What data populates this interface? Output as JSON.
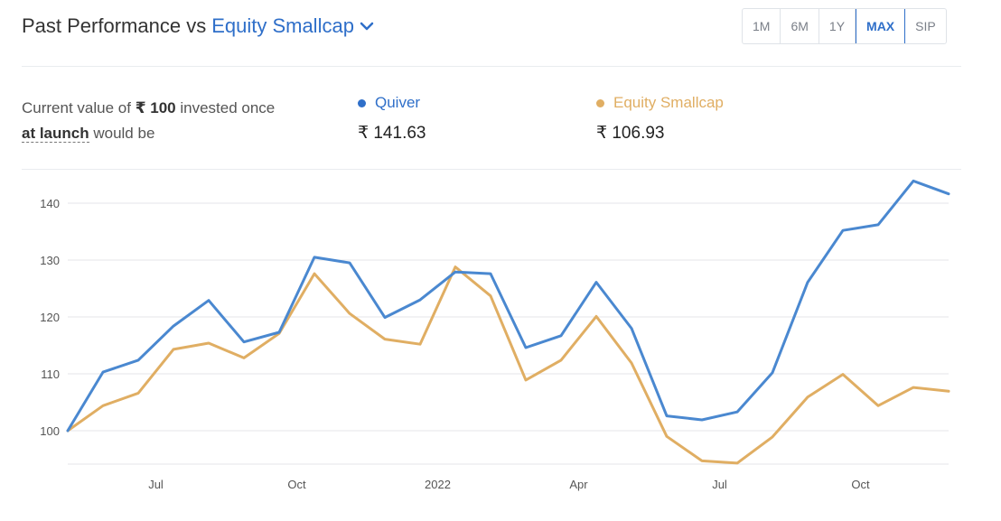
{
  "header": {
    "title": "Past Performance vs",
    "compare_label": "Equity Smallcap"
  },
  "range_tabs": [
    "1M",
    "6M",
    "1Y",
    "MAX",
    "SIP"
  ],
  "range_active": "MAX",
  "summary": {
    "prefix": "Current value of ",
    "amount": "₹ 100",
    "middle": " invested once",
    "link": "at launch",
    "suffix": " would be"
  },
  "legend": [
    {
      "name": "Quiver",
      "value": "₹ 141.63",
      "color": "#4a88d0"
    },
    {
      "name": "Equity Smallcap",
      "value": "₹ 106.93",
      "color": "#e0ae63"
    }
  ],
  "chart_data": {
    "type": "line",
    "ylim": [
      94,
      146
    ],
    "yticks": [
      100,
      110,
      120,
      130,
      140
    ],
    "x_ticks": [
      "Jul",
      "Oct",
      "2022",
      "Apr",
      "Jul",
      "Oct"
    ],
    "grid": true,
    "series": [
      {
        "name": "Quiver",
        "color": "#4a88d0",
        "values": [
          100.0,
          110.3,
          112.4,
          118.4,
          122.9,
          115.6,
          117.3,
          130.5,
          129.5,
          119.9,
          123.0,
          127.9,
          127.6,
          114.6,
          116.7,
          126.1,
          118.0,
          102.6,
          101.9,
          103.3,
          110.2,
          126.1,
          135.2,
          136.2,
          143.9,
          141.63
        ]
      },
      {
        "name": "Equity Smallcap",
        "color": "#e0ae63",
        "values": [
          100.0,
          104.4,
          106.6,
          114.3,
          115.4,
          112.8,
          117.1,
          127.6,
          120.6,
          116.1,
          115.2,
          128.8,
          123.7,
          108.9,
          112.4,
          120.1,
          111.9,
          99.0,
          94.7,
          94.3,
          98.9,
          105.9,
          109.9,
          104.4,
          107.6,
          106.93
        ]
      }
    ]
  }
}
